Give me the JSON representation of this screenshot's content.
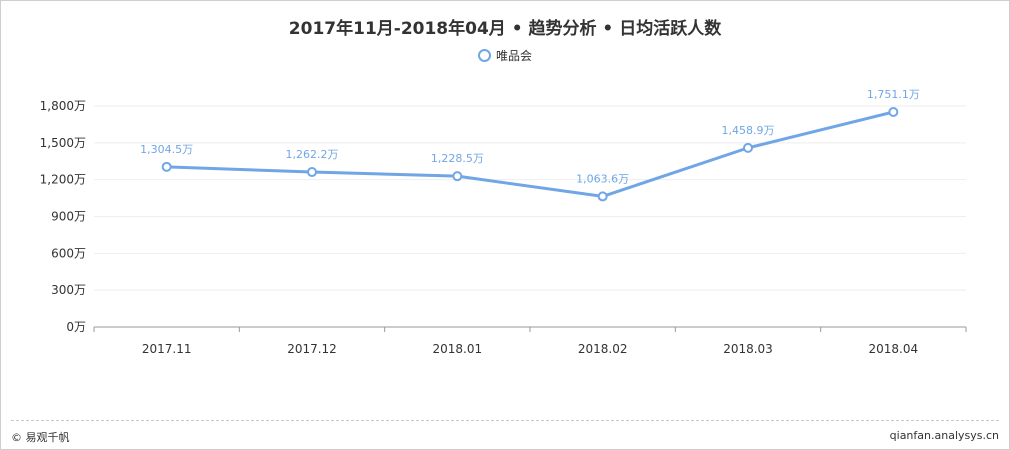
{
  "colors": {
    "series": "#70a6e6",
    "axis": "#999999",
    "grid": "#eeeeee",
    "text": "#333333"
  },
  "chart_data": {
    "type": "line",
    "title": "2017年11月-2018年04月 • 趋势分析 • 日均活跃人数",
    "categories": [
      "2017.11",
      "2017.12",
      "2018.01",
      "2018.02",
      "2018.03",
      "2018.04"
    ],
    "series": [
      {
        "name": "唯品会",
        "values": [
          1304.5,
          1262.2,
          1228.5,
          1063.6,
          1458.9,
          1751.1
        ],
        "labels": [
          "1,304.5万",
          "1,262.2万",
          "1,228.5万",
          "1,063.6万",
          "1,458.9万",
          "1,751.1万"
        ]
      }
    ],
    "yticks": [
      0,
      300,
      600,
      900,
      1200,
      1500,
      1800
    ],
    "ytick_labels": [
      "0万",
      "300万",
      "600万",
      "900万",
      "1,200万",
      "1,500万",
      "1,800万"
    ],
    "ylim": [
      0,
      1800
    ],
    "grid": true,
    "legend_position": "top-center"
  },
  "footer": {
    "left": "© 易观千帆",
    "right": "qianfan.analysys.cn"
  }
}
